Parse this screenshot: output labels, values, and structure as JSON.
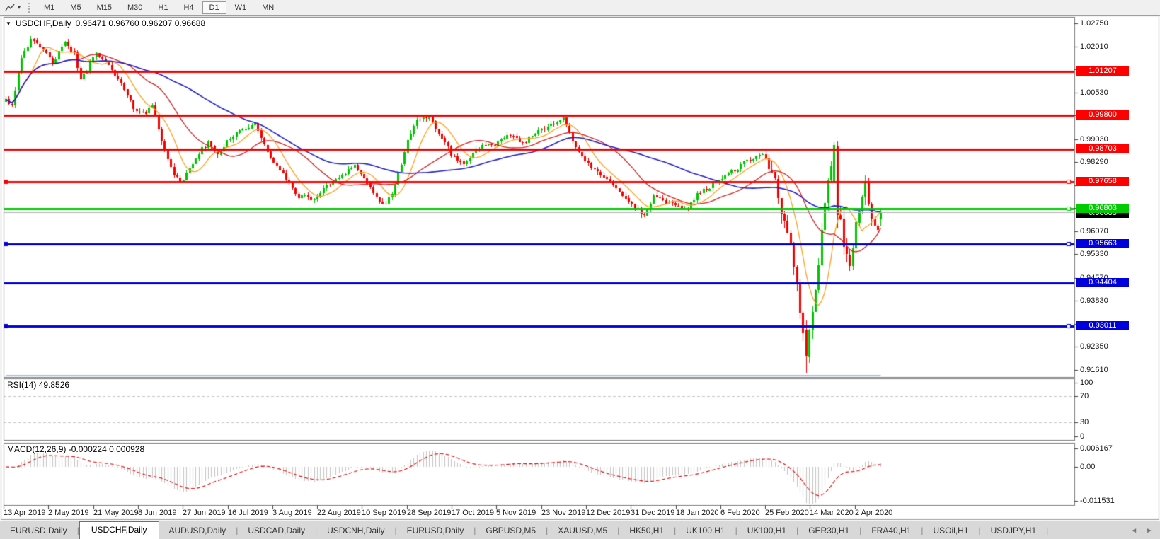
{
  "toolbar": {
    "periods": [
      "M1",
      "M5",
      "M15",
      "M30",
      "H1",
      "H4",
      "D1",
      "W1",
      "MN"
    ],
    "selected": "D1"
  },
  "chart": {
    "title": "USDCHF,Daily",
    "ohlc": "0.96471 0.96760 0.96207 0.96688"
  },
  "icons": {
    "chart_menu_triangle": "▼",
    "toolbar_caret": "▾",
    "tab_scroll_left": "◄",
    "tab_scroll_right": "►"
  },
  "chart_data": {
    "type": "candlestick",
    "symbol": "USDCHF",
    "timeframe": "Daily",
    "last_ohlc": {
      "open": 0.96471,
      "high": 0.9676,
      "low": 0.96207,
      "close": 0.96688
    },
    "price_axis": {
      "ticks": [
        "1.02750",
        "1.02010",
        "1.01270",
        "1.00530",
        "0.99790",
        "0.99030",
        "0.98290",
        "0.97550",
        "0.96810",
        "0.96070",
        "0.95330",
        "0.94570",
        "0.93830",
        "0.93090",
        "0.92350",
        "0.91610"
      ],
      "max": 1.0275,
      "min": 0.9161,
      "step": 0.0074
    },
    "hlines": [
      {
        "price": 1.01207,
        "label": "1.01207",
        "color": "#ff0000",
        "left_handle": false,
        "right_handle": false
      },
      {
        "price": 0.998,
        "label": "0.99800",
        "color": "#ff0000",
        "left_handle": false,
        "right_handle": false
      },
      {
        "price": 0.98703,
        "label": "0.98703",
        "color": "#ff0000",
        "left_handle": false,
        "right_handle": false
      },
      {
        "price": 0.97658,
        "label": "0.97658",
        "color": "#ff0000",
        "left_handle": true,
        "right_handle": true
      },
      {
        "price": 0.96803,
        "label": "0.96803",
        "color": "#00cc00",
        "left_handle": false,
        "right_handle": true
      },
      {
        "price": 0.95663,
        "label": "0.95663",
        "color": "#0000dd",
        "left_handle": true,
        "right_handle": true
      },
      {
        "price": 0.94404,
        "label": "0.94404",
        "color": "#0000dd",
        "left_handle": false,
        "right_handle": false
      },
      {
        "price": 0.93011,
        "label": "0.93011",
        "color": "#0000dd",
        "left_handle": true,
        "right_handle": true
      }
    ],
    "current_price": {
      "value": 0.96688,
      "label": "0.96688",
      "line_color": "#b4b4b4",
      "tag_bg": "#000000"
    },
    "dates": [
      "13 Apr 2019",
      "2 May 2019",
      "21 May 2019",
      "8 Jun 2019",
      "27 Jun 2019",
      "16 Jul 2019",
      "3 Aug 2019",
      "22 Aug 2019",
      "10 Sep 2019",
      "28 Sep 2019",
      "17 Oct 2019",
      "5 Nov 2019",
      "23 Nov 2019",
      "12 Dec 2019",
      "31 Dec 2019",
      "18 Jan 2020",
      "6 Feb 2020",
      "25 Feb 2020",
      "14 Mar 2020",
      "2 Apr 2020"
    ],
    "candles": 282,
    "price_path": [
      [
        0,
        1.0035
      ],
      [
        2,
        1.001
      ],
      [
        5,
        1.017
      ],
      [
        8,
        1.022
      ],
      [
        12,
        1.019
      ],
      [
        15,
        1.015
      ],
      [
        19,
        1.021
      ],
      [
        22,
        1.018
      ],
      [
        24,
        1.009
      ],
      [
        29,
        1.0185
      ],
      [
        32,
        1.015
      ],
      [
        37,
        1.008
      ],
      [
        41,
        1.0
      ],
      [
        45,
        0.999
      ],
      [
        47,
        1.001
      ],
      [
        50,
        0.99
      ],
      [
        54,
        0.979
      ],
      [
        56,
        0.976
      ],
      [
        58,
        0.979
      ],
      [
        62,
        0.986
      ],
      [
        65,
        0.989
      ],
      [
        68,
        0.985
      ],
      [
        71,
        0.99
      ],
      [
        75,
        0.993
      ],
      [
        80,
        0.995
      ],
      [
        83,
        0.988
      ],
      [
        88,
        0.98
      ],
      [
        94,
        0.972
      ],
      [
        99,
        0.971
      ],
      [
        104,
        0.976
      ],
      [
        112,
        0.982
      ],
      [
        116,
        0.976
      ],
      [
        121,
        0.969
      ],
      [
        124,
        0.972
      ],
      [
        129,
        0.99
      ],
      [
        132,
        0.996
      ],
      [
        136,
        0.9975
      ],
      [
        143,
        0.9855
      ],
      [
        147,
        0.982
      ],
      [
        152,
        0.988
      ],
      [
        157,
        0.988
      ],
      [
        162,
        0.992
      ],
      [
        166,
        0.989
      ],
      [
        171,
        0.993
      ],
      [
        175,
        0.995
      ],
      [
        179,
        0.9975
      ],
      [
        183,
        0.987
      ],
      [
        189,
        0.98
      ],
      [
        196,
        0.975
      ],
      [
        202,
        0.968
      ],
      [
        205,
        0.9655
      ],
      [
        208,
        0.972
      ],
      [
        212,
        0.97
      ],
      [
        215,
        0.9685
      ],
      [
        219,
        0.968
      ],
      [
        222,
        0.973
      ],
      [
        226,
        0.9745
      ],
      [
        230,
        0.978
      ],
      [
        235,
        0.981
      ],
      [
        239,
        0.984
      ],
      [
        243,
        0.985
      ],
      [
        245,
        0.982
      ],
      [
        247,
        0.976
      ],
      [
        249,
        0.966
      ],
      [
        252,
        0.956
      ],
      [
        254,
        0.943
      ],
      [
        256,
        0.928
      ],
      [
        257,
        0.9185
      ],
      [
        258,
        0.93
      ],
      [
        260,
        0.942
      ],
      [
        262,
        0.96
      ],
      [
        264,
        0.978
      ],
      [
        266,
        0.987
      ],
      [
        267,
        0.97
      ],
      [
        269,
        0.956
      ],
      [
        271,
        0.951
      ],
      [
        274,
        0.968
      ],
      [
        276,
        0.976
      ],
      [
        278,
        0.964
      ],
      [
        280,
        0.9615
      ],
      [
        281,
        0.9669
      ]
    ],
    "moving_averages": [
      {
        "name": "fast",
        "window": 9,
        "color": "#ffa01e"
      },
      {
        "name": "medium",
        "window": 24,
        "color": "#d42020"
      },
      {
        "name": "slow",
        "window": 55,
        "color": "#2020c8"
      }
    ],
    "rsi": {
      "label": "RSI(14)",
      "value": "49.8526",
      "period": 14,
      "levels": [
        "100",
        "70",
        "30",
        "0"
      ],
      "line_color": "#3e8ed0"
    },
    "macd": {
      "label": "MACD(12,26,9)",
      "value": "-0.000224 0.000928",
      "axis": [
        "0.006167",
        "0.00",
        "-0.011531"
      ],
      "hist_color": "#c4c4c4",
      "signal_color": "#e80000"
    },
    "colors": {
      "up": "#00c400",
      "down": "#f20000",
      "background": "#ffffff"
    }
  },
  "tabs": {
    "items": [
      "EURUSD,Daily",
      "USDCHF,Daily",
      "AUDUSD,Daily",
      "USDCAD,Daily",
      "USDCNH,Daily",
      "EURUSD,Daily",
      "GBPUSD,M5",
      "XAUUSD,M5",
      "HK50,H1",
      "UK100,H1",
      "UK100,H1",
      "GER30,H1",
      "FRA40,H1",
      "USOil,H1",
      "USDJPY,H1"
    ],
    "active_index": 1
  }
}
